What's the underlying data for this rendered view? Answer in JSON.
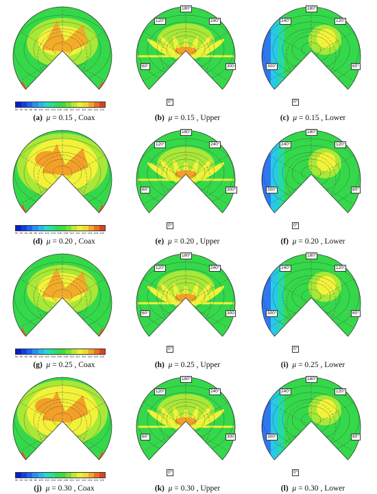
{
  "colors": {
    "deep_blue": "#1030d8",
    "blue": "#2f78f0",
    "cyan": "#28c8e8",
    "teal": "#28d8a8",
    "green": "#35d84a",
    "lime": "#a8e838",
    "yellow": "#f2f23a",
    "orange": "#f2a028",
    "red": "#e85828"
  },
  "colorbar_values": [
    "90",
    "92",
    "94",
    "96",
    "98",
    "100",
    "102",
    "104",
    "106",
    "108",
    "110",
    "112",
    "114",
    "116",
    "118",
    "120"
  ],
  "colorbar_colors": [
    "#0a1ec8",
    "#1040e0",
    "#1c64f0",
    "#2890f0",
    "#28b8e8",
    "#28d8c8",
    "#28e090",
    "#2fdc58",
    "#40dc40",
    "#78e03a",
    "#b8e838",
    "#e8f038",
    "#f0d830",
    "#f0a828",
    "#e87028",
    "#e04020"
  ],
  "panels": [
    {
      "letter": "(a)",
      "mu": "= 0.15",
      "label": "Coax",
      "type": "coax",
      "intensity": "low",
      "angles": []
    },
    {
      "letter": "(b)",
      "mu": "= 0.15",
      "label": "Upper",
      "type": "upper",
      "intensity": "low",
      "angles": [
        "180°",
        "120°",
        "240°",
        "60°",
        "300",
        "0°"
      ]
    },
    {
      "letter": "(c)",
      "mu": "= 0.15",
      "label": "Lower",
      "type": "lower",
      "intensity": "low",
      "angles": [
        "180°",
        "240°",
        "120°",
        "300°",
        "60°",
        "0°"
      ]
    },
    {
      "letter": "(d)",
      "mu": "= 0.20",
      "label": "Coax",
      "type": "coax",
      "intensity": "high",
      "angles": []
    },
    {
      "letter": "(e)",
      "mu": "= 0.20",
      "label": "Upper",
      "type": "upper",
      "intensity": "low",
      "angles": [
        "180°",
        "120°",
        "240°",
        "60°",
        "300°",
        "0°"
      ]
    },
    {
      "letter": "(f)",
      "mu": "= 0.20",
      "label": "Lower",
      "type": "lower",
      "intensity": "low",
      "angles": [
        "180°",
        "240°",
        "120°",
        "300°",
        "60°",
        "0°"
      ]
    },
    {
      "letter": "(g)",
      "mu": "= 0.25",
      "label": "Coax",
      "type": "coax",
      "intensity": "low",
      "angles": []
    },
    {
      "letter": "(h)",
      "mu": "= 0.25",
      "label": "Upper",
      "type": "upper",
      "intensity": "low",
      "angles": [
        "180°",
        "120°",
        "240°",
        "60°",
        "300",
        "0°"
      ]
    },
    {
      "letter": "(i)",
      "mu": "= 0.25",
      "label": "Lower",
      "type": "lower",
      "intensity": "low",
      "angles": [
        "180°",
        "240°",
        "120°",
        "300°",
        "60°",
        "0°"
      ]
    },
    {
      "letter": "(j)",
      "mu": "= 0.30",
      "label": "Coax",
      "type": "coax",
      "intensity": "high",
      "angles": []
    },
    {
      "letter": "(k)",
      "mu": "= 0.30",
      "label": "Upper",
      "type": "upper",
      "intensity": "low",
      "angles": [
        "180°",
        "120°",
        "240°",
        "60°",
        "300",
        "0°"
      ]
    },
    {
      "letter": "(l)",
      "mu": "= 0.30",
      "label": "Lower",
      "type": "lower",
      "intensity": "low",
      "angles": [
        "180°",
        "240°",
        "120°",
        "300°",
        "60°",
        "0°"
      ]
    }
  ]
}
